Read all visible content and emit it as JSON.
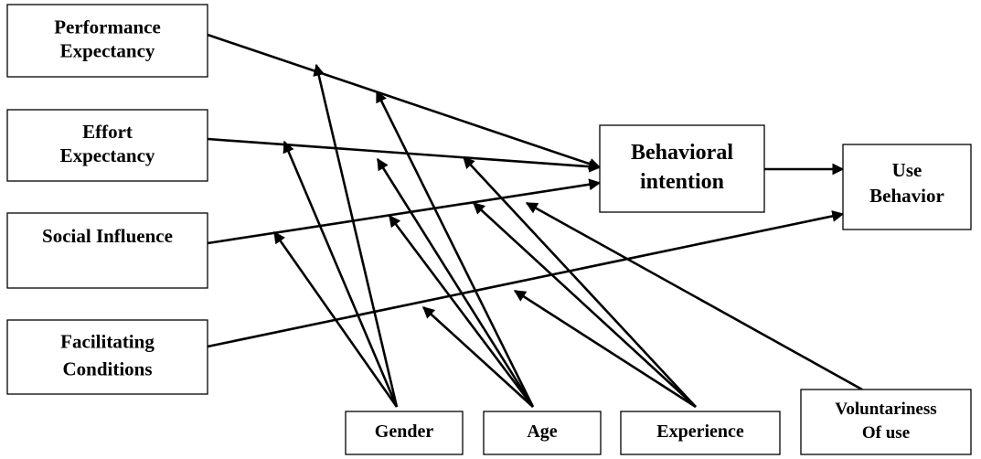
{
  "diagram": {
    "nodes": {
      "performance_expectancy": {
        "lines": [
          "Performance",
          "Expectancy"
        ]
      },
      "effort_expectancy": {
        "lines": [
          "Effort",
          "Expectancy"
        ]
      },
      "social_influence": {
        "lines": [
          "Social Influence"
        ]
      },
      "facilitating_conditions": {
        "lines": [
          "Facilitating",
          "Conditions"
        ]
      },
      "behavioral_intention": {
        "lines": [
          "Behavioral",
          "intention"
        ]
      },
      "use_behavior": {
        "lines": [
          "Use",
          "Behavior"
        ]
      },
      "gender": {
        "lines": [
          "Gender"
        ]
      },
      "age": {
        "lines": [
          "Age"
        ]
      },
      "experience": {
        "lines": [
          "Experience"
        ]
      },
      "voluntariness_of_use": {
        "lines": [
          "Voluntariness",
          "Of use"
        ]
      }
    },
    "edges": [
      {
        "from": "performance_expectancy",
        "to": "behavioral_intention"
      },
      {
        "from": "effort_expectancy",
        "to": "behavioral_intention"
      },
      {
        "from": "social_influence",
        "to": "behavioral_intention"
      },
      {
        "from": "facilitating_conditions",
        "to": "use_behavior"
      },
      {
        "from": "behavioral_intention",
        "to": "use_behavior"
      },
      {
        "from": "gender",
        "to": "performance_expectancy-path"
      },
      {
        "from": "gender",
        "to": "effort_expectancy-path"
      },
      {
        "from": "gender",
        "to": "social_influence-path"
      },
      {
        "from": "age",
        "to": "performance_expectancy-path"
      },
      {
        "from": "age",
        "to": "effort_expectancy-path"
      },
      {
        "from": "age",
        "to": "social_influence-path"
      },
      {
        "from": "age",
        "to": "facilitating_conditions-path"
      },
      {
        "from": "experience",
        "to": "effort_expectancy-path"
      },
      {
        "from": "experience",
        "to": "social_influence-path"
      },
      {
        "from": "experience",
        "to": "facilitating_conditions-path"
      },
      {
        "from": "voluntariness_of_use",
        "to": "social_influence-path"
      }
    ]
  }
}
